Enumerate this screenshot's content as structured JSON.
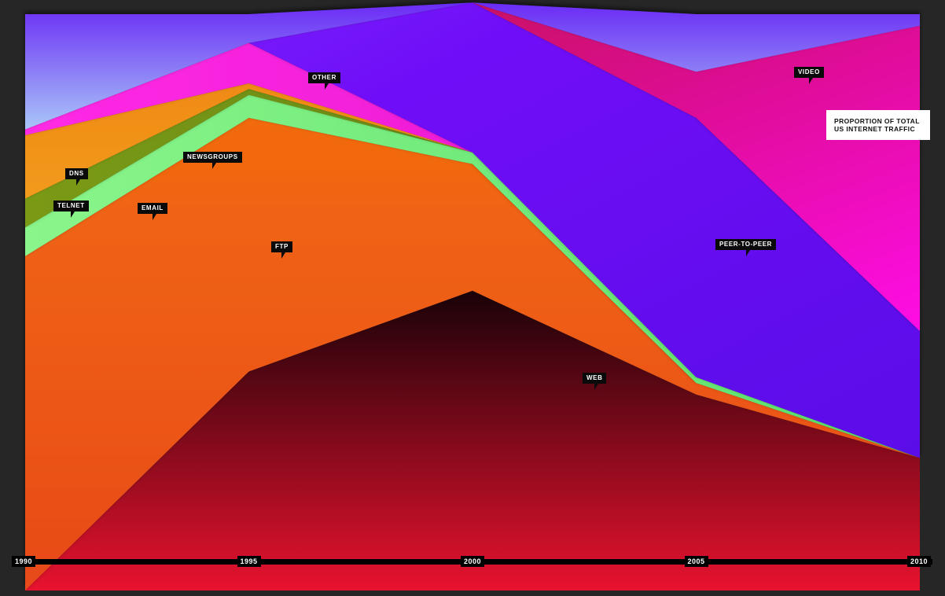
{
  "title_lines": [
    "PROPORTION OF TOTAL",
    "US INTERNET TRAFFIC"
  ],
  "chart_data": {
    "type": "area",
    "stacked": true,
    "normalized": true,
    "x": [
      1990,
      1995,
      2000,
      2005,
      2010
    ],
    "x_tick_labels": [
      "1990",
      "1995",
      "2000",
      "2005",
      "2010"
    ],
    "ylim": [
      0,
      1
    ],
    "series": [
      {
        "name": "WEB",
        "color": "#e8122e",
        "values": [
          0.0,
          0.38,
          0.52,
          0.34,
          0.23
        ]
      },
      {
        "name": "FTP",
        "color": "#f25a14",
        "values": [
          0.58,
          0.44,
          0.22,
          0.02,
          0.0
        ]
      },
      {
        "name": "EMAIL",
        "color": "#7af07e",
        "values": [
          0.05,
          0.04,
          0.02,
          0.01,
          0.0
        ]
      },
      {
        "name": "TELNET",
        "color": "#6a8a12",
        "values": [
          0.05,
          0.01,
          0.0,
          0.0,
          0.0
        ]
      },
      {
        "name": "DNS",
        "color": "#f5a018",
        "values": [
          0.11,
          0.01,
          0.0,
          0.0,
          0.0
        ]
      },
      {
        "name": "NEWSGROUPS",
        "color": "#ff22dd",
        "values": [
          0.01,
          0.07,
          0.0,
          0.0,
          0.0
        ]
      },
      {
        "name": "PEER-TO-PEER",
        "color": "#6a10f5",
        "values": [
          0.0,
          0.0,
          0.26,
          0.45,
          0.22
        ]
      },
      {
        "name": "VIDEO",
        "color": "#d01a6a",
        "values": [
          0.0,
          0.0,
          0.0,
          0.08,
          0.53
        ]
      },
      {
        "name": "OTHER",
        "color": "#8ca6f5",
        "values": [
          0.2,
          0.05,
          0.0,
          0.1,
          0.02
        ]
      }
    ],
    "legend": "inline callouts"
  }
}
